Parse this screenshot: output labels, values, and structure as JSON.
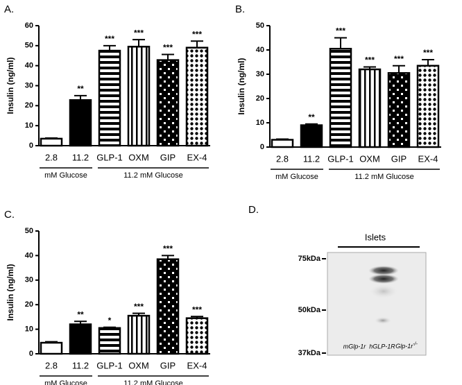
{
  "chart_data": [
    {
      "type": "bar",
      "title": "A.",
      "y_label": "Insulin  (ng/ml)",
      "categories": [
        "2.8",
        "11.2",
        "GLP-1",
        "OXM",
        "GIP",
        "EX-4"
      ],
      "values": [
        3.5,
        22.8,
        47.5,
        49.5,
        42.8,
        49
      ],
      "errors": [
        0.3,
        2.2,
        2.5,
        3.5,
        2.8,
        3.3
      ],
      "annotations": [
        null,
        "**",
        "***",
        "***",
        "***",
        "***"
      ],
      "patterns": [
        "white",
        "black",
        "hstripes",
        "vstripes",
        "squares",
        "dots"
      ],
      "groups": [
        "mM Glucose",
        "11.2 mM Glucose"
      ],
      "ylim": [
        0,
        60
      ],
      "yticks": [
        0,
        10,
        20,
        30,
        40,
        50,
        60
      ]
    },
    {
      "type": "bar",
      "title": "B.",
      "y_label": "Insulin  (ng/ml)",
      "categories": [
        "2.8",
        "11.2",
        "GLP-1",
        "OXM",
        "GIP",
        "EX-4"
      ],
      "values": [
        3,
        9,
        40.5,
        32,
        30.5,
        33.5
      ],
      "errors": [
        0.3,
        0.5,
        4.5,
        1,
        3,
        2.5
      ],
      "annotations": [
        null,
        "**",
        "***",
        "***",
        "***",
        "***"
      ],
      "patterns": [
        "white",
        "black",
        "hstripes",
        "vstripes",
        "squares",
        "dots"
      ],
      "groups": [
        "mM Glucose",
        "11.2 mM Glucose"
      ],
      "ylim": [
        0,
        50
      ],
      "yticks": [
        0,
        10,
        20,
        30,
        40,
        50
      ]
    },
    {
      "type": "bar",
      "title": "C.",
      "y_label": "Insulin  (ng/ml)",
      "categories": [
        "2.8",
        "11.2",
        "GLP-1",
        "OXM",
        "GIP",
        "EX-4"
      ],
      "values": [
        4.5,
        12,
        10.5,
        15.5,
        38.5,
        14.5
      ],
      "errors": [
        0.4,
        1.2,
        0.3,
        1,
        1.5,
        0.7
      ],
      "annotations": [
        null,
        "**",
        "*",
        "***",
        "***",
        "***"
      ],
      "patterns": [
        "white",
        "black",
        "hstripes",
        "vstripes",
        "squares",
        "dots"
      ],
      "groups": [
        "mM Glucose",
        "11.2 mM Glucose"
      ],
      "ylim": [
        0,
        50
      ],
      "yticks": [
        0,
        10,
        20,
        30,
        40,
        50
      ]
    }
  ],
  "blot": {
    "title": "D.",
    "header": "Islets",
    "markers": [
      "75kDa",
      "50kDa",
      "37kDa"
    ],
    "lanes": [
      "mGlp-1r",
      "hGLP-1R",
      "Glp-1r"
    ],
    "lane_superscript": "-/-"
  }
}
